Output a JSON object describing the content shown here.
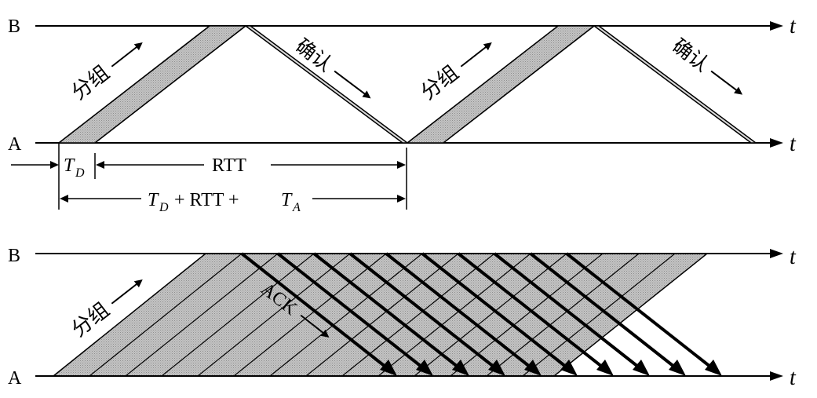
{
  "top": {
    "label_b": "B",
    "label_a": "A",
    "axis_t_top": "t",
    "axis_t_bottom": "t",
    "packet_1": "分组",
    "ack_1": "确认",
    "packet_2": "分组",
    "ack_2": "确认",
    "td_base": "T",
    "td_sub": "D",
    "rtt": "RTT",
    "total_td_base": "T",
    "total_td_sub": "D",
    "total_mid": "+ RTT +",
    "total_ta_base": "T",
    "total_ta_sub": "A"
  },
  "bottom": {
    "label_b": "B",
    "label_a": "A",
    "axis_t_top": "t",
    "axis_t_bottom": "t",
    "packet": "分组",
    "ack": "ACK"
  },
  "colors": {
    "line": "#000000",
    "packet_fill": "#b4b4b4",
    "background": "#ffffff"
  }
}
